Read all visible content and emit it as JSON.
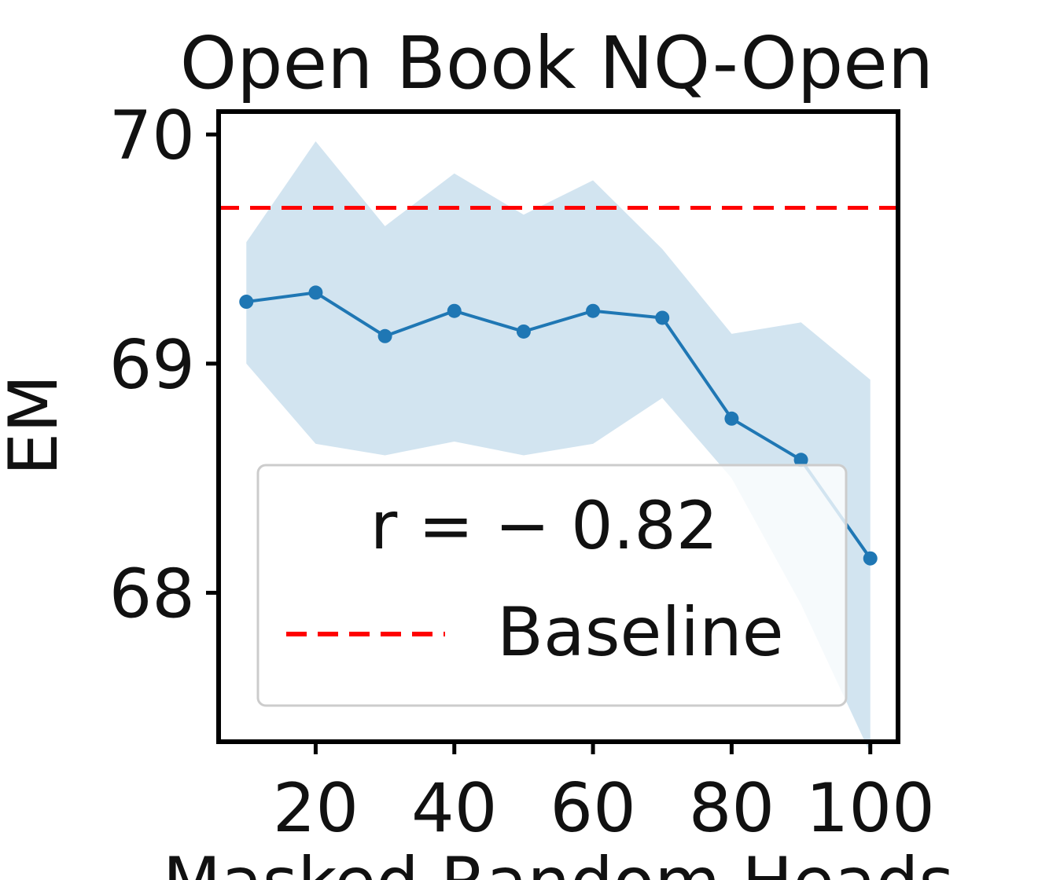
{
  "chart_data": {
    "type": "line",
    "title": "Open Book NQ-Open",
    "xlabel": "Masked Random Heads",
    "ylabel": "EM",
    "xlim": [
      6,
      104
    ],
    "ylim": [
      67.35,
      70.1
    ],
    "xticks": [
      20,
      40,
      60,
      80,
      100
    ],
    "yticks": [
      68,
      69,
      70
    ],
    "grid": false,
    "series": [
      {
        "x": [
          10,
          20,
          30,
          40,
          50,
          60,
          70,
          80,
          90,
          100
        ],
        "values": [
          69.27,
          69.31,
          69.12,
          69.23,
          69.14,
          69.23,
          69.2,
          68.76,
          68.58,
          68.15
        ],
        "lower": [
          69.0,
          68.65,
          68.6,
          68.66,
          68.6,
          68.65,
          68.85,
          68.5,
          67.95,
          67.3
        ],
        "upper": [
          69.53,
          69.97,
          69.6,
          69.83,
          69.65,
          69.8,
          69.5,
          69.13,
          69.18,
          68.93
        ],
        "color": "#1f77b4",
        "band_color": "#1f77b4"
      }
    ],
    "baseline": {
      "value": 69.68,
      "color": "#ff0000"
    },
    "legend": {
      "placement": "lower-center",
      "entries": [
        {
          "label": "r = − 0.82"
        },
        {
          "label": "Baseline"
        }
      ]
    }
  }
}
